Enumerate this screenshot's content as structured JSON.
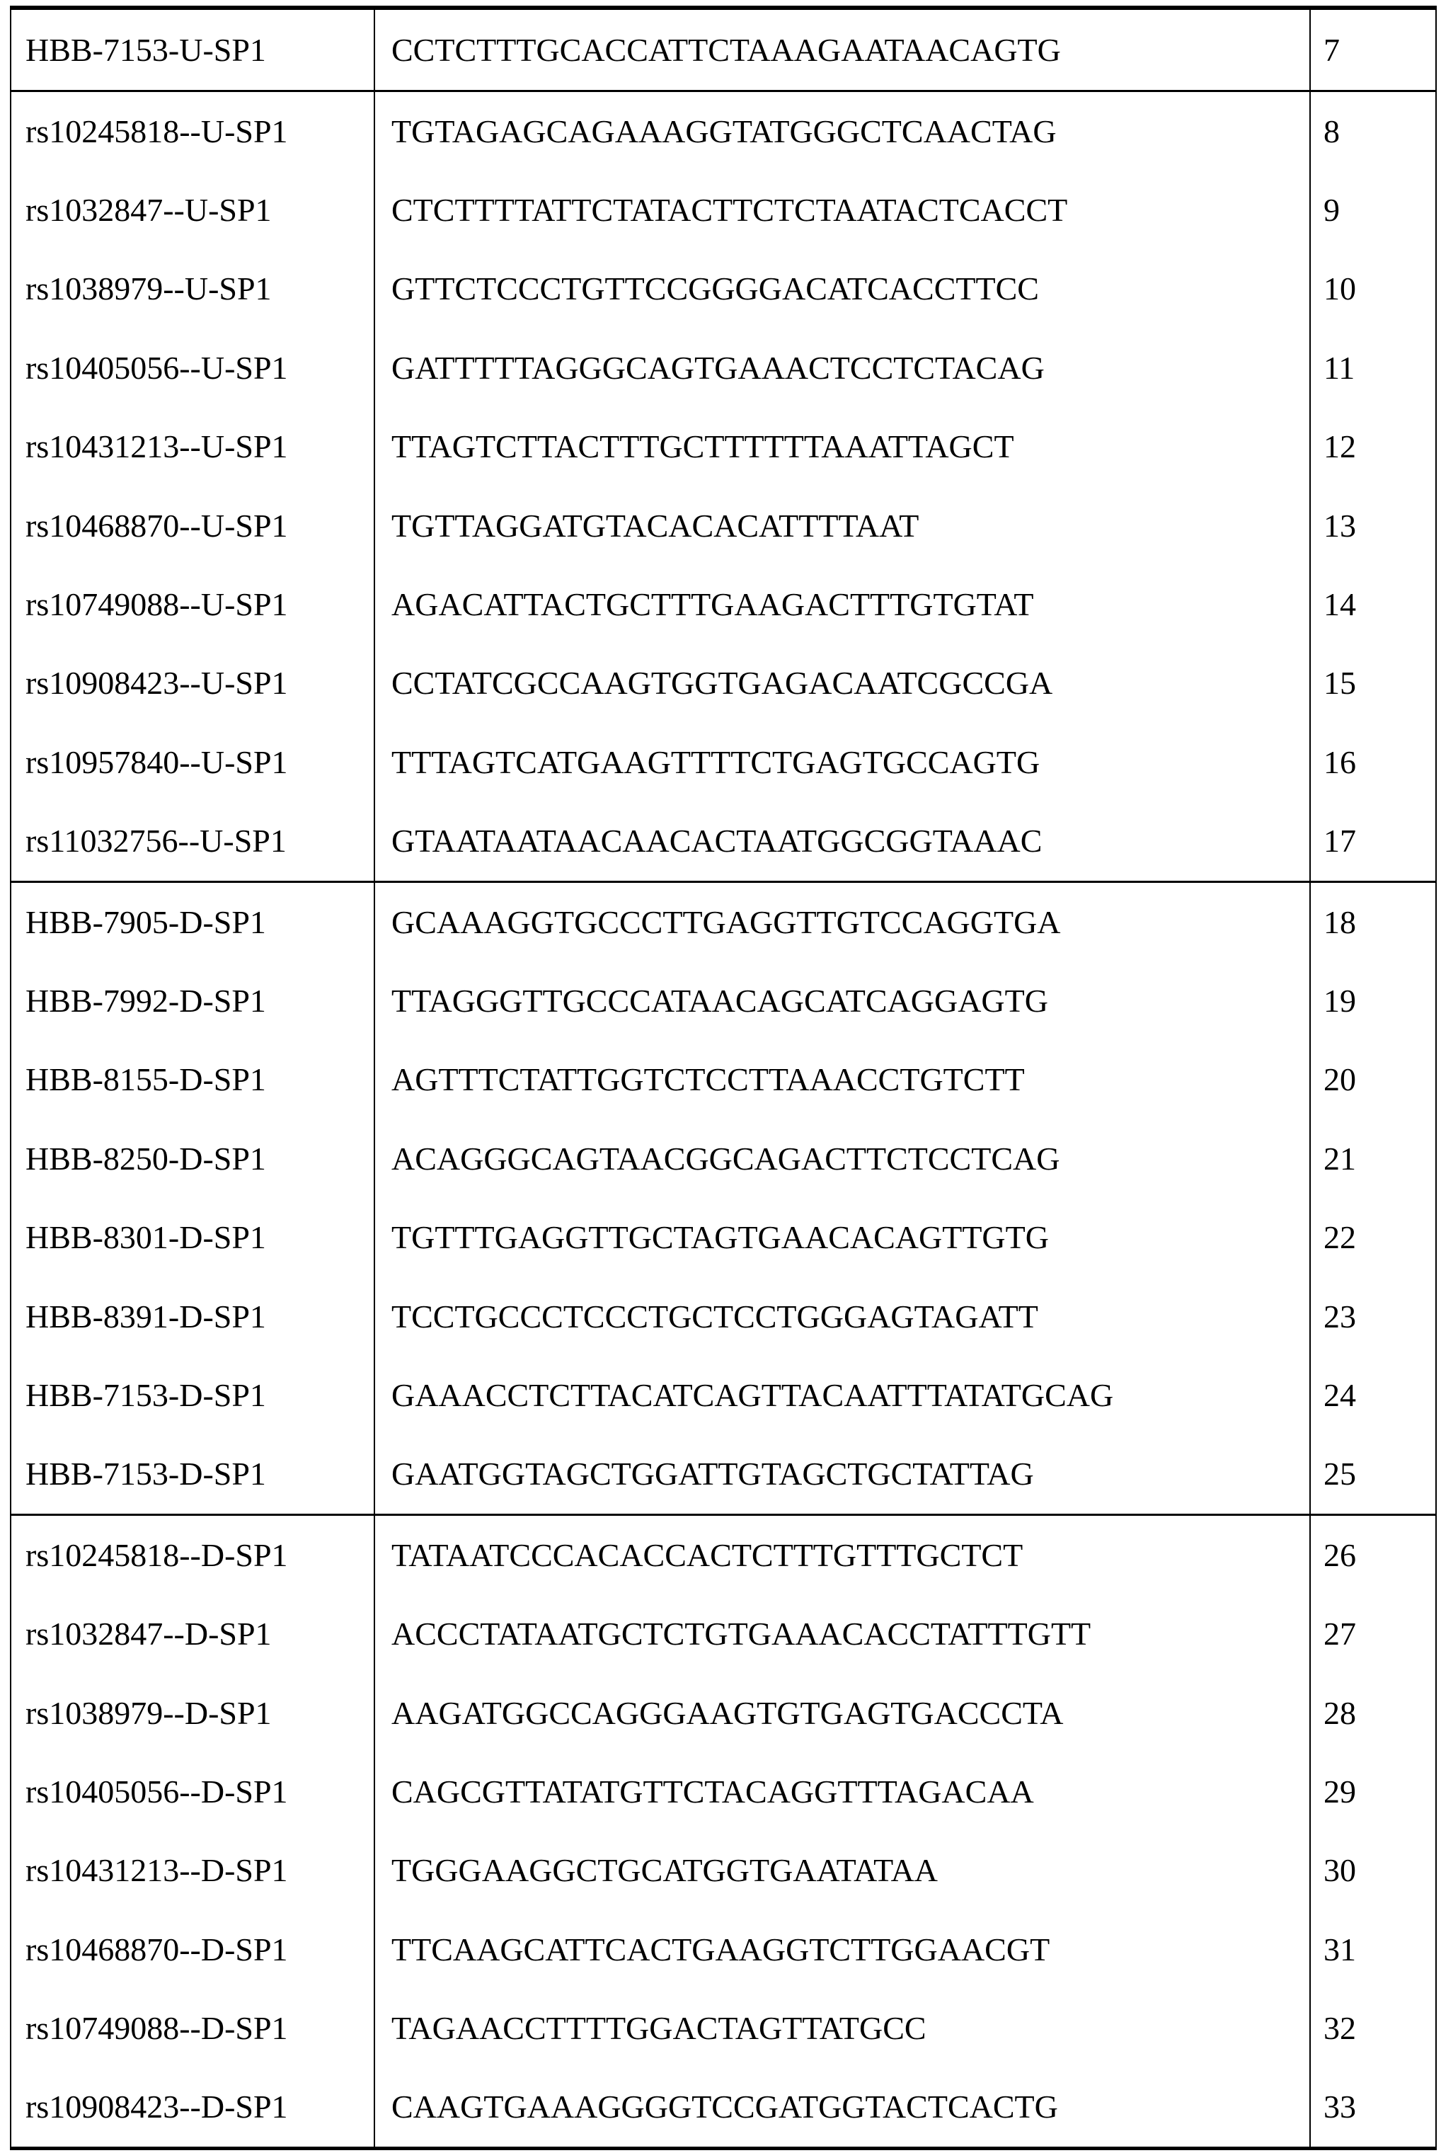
{
  "table": {
    "groups": [
      [
        {
          "name": "HBB-7153-U-SP1",
          "sequence": "CCTCTTTGCACCATTCTAAAGAATAACAGTG",
          "seq_id": "7"
        }
      ],
      [
        {
          "name": "rs10245818--U-SP1",
          "sequence": "TGTAGAGCAGAAAGGTATGGGCTCAACTAG",
          "seq_id": "8"
        },
        {
          "name": "rs1032847--U-SP1",
          "sequence": "CTCTTTTATTCTATACTTCTCTAATACTCACCT",
          "seq_id": "9"
        },
        {
          "name": "rs1038979--U-SP1",
          "sequence": "GTTCTCCCTGTTCCGGGGACATCACCTTCC",
          "seq_id": "10"
        },
        {
          "name": "rs10405056--U-SP1",
          "sequence": "GATTTTTAGGGCAGTGAAACTCCTCTACAG",
          "seq_id": "11"
        },
        {
          "name": "rs10431213--U-SP1",
          "sequence": "TTAGTCTTACTTTGCTTTTTTAAATTAGCT",
          "seq_id": "12"
        },
        {
          "name": "rs10468870--U-SP1",
          "sequence": "TGTTAGGATGTACACACATTTTAAT",
          "seq_id": "13"
        },
        {
          "name": "rs10749088--U-SP1",
          "sequence": "AGACATTACTGCTTTGAAGACTTTGTGTAT",
          "seq_id": "14"
        },
        {
          "name": "rs10908423--U-SP1",
          "sequence": "CCTATCGCCAAGTGGTGAGACAATCGCCGA",
          "seq_id": "15"
        },
        {
          "name": "rs10957840--U-SP1",
          "sequence": "TTTAGTCATGAAGTTTTCTGAGTGCCAGTG",
          "seq_id": "16"
        },
        {
          "name": "rs11032756--U-SP1",
          "sequence": "GTAATAATAACAACACTAATGGCGGTAAAC",
          "seq_id": "17"
        }
      ],
      [
        {
          "name": "HBB-7905-D-SP1",
          "sequence": "GCAAAGGTGCCCTTGAGGTTGTCCAGGTGA",
          "seq_id": "18"
        },
        {
          "name": "HBB-7992-D-SP1",
          "sequence": "TTAGGGTTGCCCATAACAGCATCAGGAGTG",
          "seq_id": "19"
        },
        {
          "name": "HBB-8155-D-SP1",
          "sequence": "AGTTTCTATTGGTCTCCTTAAACCTGTCTT",
          "seq_id": "20"
        },
        {
          "name": "HBB-8250-D-SP1",
          "sequence": "ACAGGGCAGTAACGGCAGACTTCTCCTCAG",
          "seq_id": "21"
        },
        {
          "name": "HBB-8301-D-SP1",
          "sequence": "TGTTTGAGGTTGCTAGTGAACACAGTTGTG",
          "seq_id": "22"
        },
        {
          "name": "HBB-8391-D-SP1",
          "sequence": "TCCTGCCCTCCCTGCTCCTGGGAGTAGATT",
          "seq_id": "23"
        },
        {
          "name": "HBB-7153-D-SP1",
          "sequence": "GAAACCTCTTACATCAGTTACAATTTATATGCAG",
          "seq_id": "24"
        },
        {
          "name": "HBB-7153-D-SP1",
          "sequence": "GAATGGTAGCTGGATTGTAGCTGCTATTAG",
          "seq_id": "25"
        }
      ],
      [
        {
          "name": "rs10245818--D-SP1",
          "sequence": "TATAATCCCACACCACTCTTTGTTTGCTCT",
          "seq_id": "26"
        },
        {
          "name": "rs1032847--D-SP1",
          "sequence": "ACCCTATAATGCTCTGTGAAACACCTATTTGTT",
          "seq_id": "27"
        },
        {
          "name": "rs1038979--D-SP1",
          "sequence": "AAGATGGCCAGGGAAGTGTGAGTGACCCTA",
          "seq_id": "28"
        },
        {
          "name": "rs10405056--D-SP1",
          "sequence": "CAGCGTTATATGTTCTACAGGTTTAGACAA",
          "seq_id": "29"
        },
        {
          "name": "rs10431213--D-SP1",
          "sequence": "TGGGAAGGCTGCATGGTGAATATAA",
          "seq_id": "30"
        },
        {
          "name": "rs10468870--D-SP1",
          "sequence": "TTCAAGCATTCACTGAAGGTCTTGGAACGT",
          "seq_id": "31"
        },
        {
          "name": "rs10749088--D-SP1",
          "sequence": "TAGAACCTTTTGGACTAGTTATGCC",
          "seq_id": "32"
        },
        {
          "name": "rs10908423--D-SP1",
          "sequence": "CAAGTGAAAGGGGTCCGATGGTACTCACTG",
          "seq_id": "33"
        }
      ]
    ]
  }
}
